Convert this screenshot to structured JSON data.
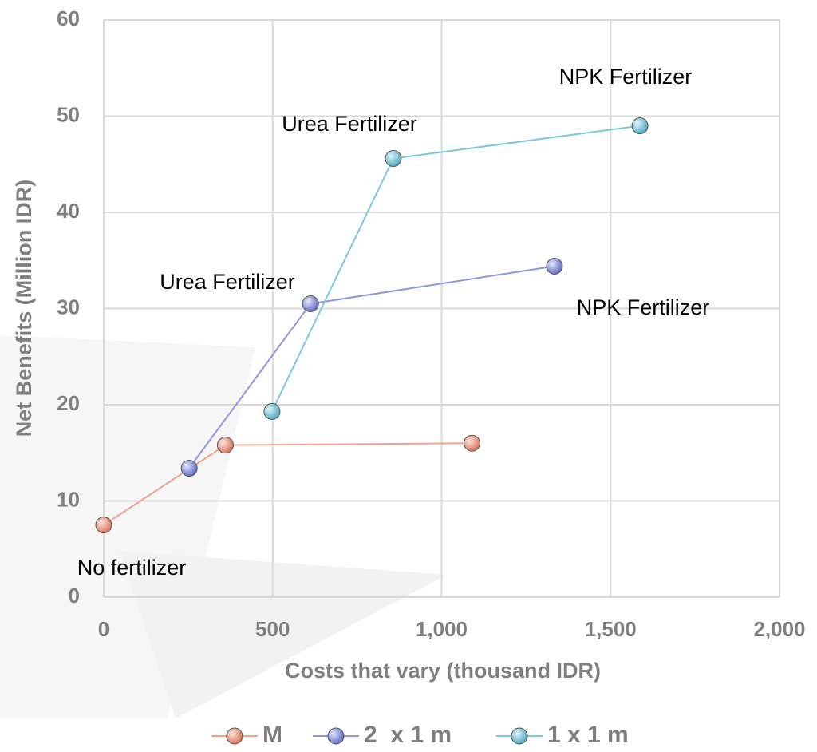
{
  "chart_data": {
    "type": "line",
    "x_label": "Costs that vary (thousand IDR)",
    "y_label": "Net Benefits (Million IDR)",
    "xlim": [
      0,
      2000
    ],
    "xticks": [
      0,
      500,
      {
        "value": 1000,
        "label": "1,000"
      },
      {
        "value": 1500,
        "label": "1,500"
      },
      {
        "value": 2000,
        "label": "2,000"
      }
    ],
    "ylim": [
      0,
      60
    ],
    "yticks": [
      0,
      10,
      20,
      30,
      40,
      50,
      60
    ],
    "grid": true,
    "legend": "bottom",
    "series": [
      {
        "name": "M",
        "color": "#f4a08a",
        "x": [
          0,
          360,
          1090
        ],
        "values": [
          7.5,
          15.8,
          16.0
        ]
      },
      {
        "name": "2  x 1 m",
        "color": "#8f97e0",
        "x": [
          253,
          612,
          1334
        ],
        "values": [
          13.4,
          30.5,
          34.4
        ]
      },
      {
        "name": "1 x 1 m",
        "color": "#7ec8dc",
        "x": [
          498,
          857,
          1587
        ],
        "values": [
          19.3,
          45.6,
          49.0
        ]
      }
    ],
    "annotations": [
      "NPK Fertilizer",
      "Urea Fertilizer",
      "Urea Fertilizer",
      "NPK Fertilizer",
      "No fertilizer"
    ]
  }
}
